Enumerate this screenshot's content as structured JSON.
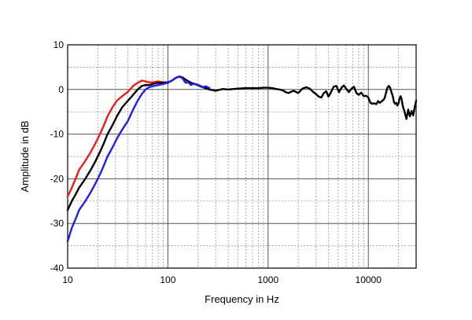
{
  "chart_data": {
    "type": "line",
    "title": "",
    "xlabel": "Frequency in Hz",
    "ylabel": "Amplitude in dB",
    "x_scale": "log",
    "xlim": [
      10,
      30000
    ],
    "ylim": [
      -40,
      10
    ],
    "x_ticks": [
      10,
      100,
      1000,
      10000
    ],
    "x_tick_labels": [
      "10",
      "100",
      "1000",
      "10000"
    ],
    "y_ticks": [
      10,
      0,
      -10,
      -20,
      -30,
      -40
    ],
    "y_tick_labels": [
      "10",
      "0",
      "-10",
      "-20",
      "-30",
      "-40"
    ],
    "grid": true,
    "legend": "none",
    "series": [
      {
        "color": "#ee1c1c",
        "points": [
          [
            10,
            -24
          ],
          [
            11,
            -22
          ],
          [
            12,
            -20
          ],
          [
            13,
            -18
          ],
          [
            15,
            -16
          ],
          [
            17,
            -14
          ],
          [
            19,
            -12
          ],
          [
            21,
            -10
          ],
          [
            23,
            -8
          ],
          [
            25,
            -6
          ],
          [
            28,
            -4
          ],
          [
            31,
            -2.5
          ],
          [
            35,
            -1.5
          ],
          [
            40,
            -0.5
          ],
          [
            45,
            0.8
          ],
          [
            50,
            1.5
          ],
          [
            55,
            2
          ],
          [
            60,
            1.8
          ],
          [
            65,
            1.6
          ],
          [
            70,
            1.6
          ],
          [
            75,
            1.7
          ],
          [
            80,
            1.8
          ],
          [
            90,
            1.6
          ],
          [
            100,
            1.6
          ],
          [
            110,
            2.0
          ],
          [
            120,
            2.6
          ],
          [
            130,
            2.9
          ],
          [
            140,
            2.7
          ],
          [
            150,
            2.2
          ],
          [
            170,
            1.5
          ],
          [
            200,
            1.0
          ],
          [
            230,
            0.4
          ],
          [
            260,
            0
          ]
        ]
      },
      {
        "color": "#000000",
        "points": [
          [
            10,
            -27
          ],
          [
            11,
            -25
          ],
          [
            12,
            -23.5
          ],
          [
            13,
            -22
          ],
          [
            15,
            -20
          ],
          [
            17,
            -18
          ],
          [
            19,
            -16
          ],
          [
            21,
            -14
          ],
          [
            23,
            -12
          ],
          [
            25,
            -10
          ],
          [
            28,
            -8
          ],
          [
            31,
            -6
          ],
          [
            35,
            -4
          ],
          [
            40,
            -2.5
          ],
          [
            45,
            -1.2
          ],
          [
            50,
            0
          ],
          [
            55,
            0.8
          ],
          [
            60,
            1.0
          ],
          [
            65,
            1.0
          ],
          [
            70,
            1.2
          ],
          [
            75,
            1.4
          ],
          [
            80,
            1.5
          ],
          [
            90,
            1.5
          ],
          [
            100,
            1.6
          ],
          [
            110,
            2.0
          ],
          [
            120,
            2.6
          ],
          [
            130,
            2.9
          ],
          [
            140,
            2.7
          ],
          [
            150,
            2.2
          ],
          [
            170,
            1.5
          ],
          [
            200,
            1.0
          ],
          [
            230,
            0.4
          ],
          [
            260,
            0
          ],
          [
            300,
            -0.3
          ],
          [
            350,
            0.1
          ],
          [
            400,
            0
          ],
          [
            500,
            0.2
          ],
          [
            600,
            0.3
          ],
          [
            700,
            0.3
          ],
          [
            800,
            0.3
          ],
          [
            900,
            0.4
          ],
          [
            1000,
            0.4
          ],
          [
            1100,
            0.3
          ],
          [
            1200,
            0.1
          ],
          [
            1300,
            0
          ],
          [
            1400,
            -0.2
          ],
          [
            1500,
            -0.6
          ],
          [
            1600,
            -0.8
          ],
          [
            1700,
            -0.5
          ],
          [
            1800,
            -0.3
          ],
          [
            2000,
            -0.8
          ],
          [
            2200,
            0.2
          ],
          [
            2400,
            0.5
          ],
          [
            2600,
            0.2
          ],
          [
            2800,
            -0.5
          ],
          [
            3000,
            -1.0
          ],
          [
            3200,
            -1.6
          ],
          [
            3400,
            -1.8
          ],
          [
            3600,
            -0.8
          ],
          [
            3800,
            -0.4
          ],
          [
            4000,
            -1.6
          ],
          [
            4200,
            -0.8
          ],
          [
            4500,
            0.6
          ],
          [
            4800,
            0.8
          ],
          [
            5100,
            -0.6
          ],
          [
            5400,
            0.4
          ],
          [
            5700,
            0.9
          ],
          [
            6000,
            0.2
          ],
          [
            6400,
            -0.6
          ],
          [
            6800,
            0.2
          ],
          [
            7200,
            0.6
          ],
          [
            7600,
            -0.8
          ],
          [
            8000,
            -1.2
          ],
          [
            8500,
            -0.7
          ],
          [
            9000,
            -1.5
          ],
          [
            9500,
            -1.4
          ],
          [
            10000,
            -1.8
          ],
          [
            10500,
            -3.0
          ],
          [
            11000,
            -3.2
          ],
          [
            11500,
            -3.1
          ],
          [
            12000,
            -3.3
          ],
          [
            12500,
            -2.6
          ],
          [
            13000,
            -3.0
          ],
          [
            13500,
            -2.7
          ],
          [
            14000,
            -2.4
          ],
          [
            14500,
            -2.0
          ],
          [
            15000,
            -0.8
          ],
          [
            15500,
            0.4
          ],
          [
            16000,
            0.8
          ],
          [
            16500,
            0.4
          ],
          [
            17000,
            -0.6
          ],
          [
            17500,
            -1.4
          ],
          [
            18000,
            -2.8
          ],
          [
            18500,
            -3.2
          ],
          [
            19000,
            -3.0
          ],
          [
            19500,
            -3.6
          ],
          [
            20000,
            -3.1
          ],
          [
            20500,
            -2.0
          ],
          [
            21000,
            -1.5
          ],
          [
            21500,
            -2.2
          ],
          [
            22000,
            -3.6
          ],
          [
            23000,
            -5.0
          ],
          [
            24000,
            -6.6
          ],
          [
            25000,
            -4.5
          ],
          [
            26000,
            -6.0
          ],
          [
            27000,
            -4.8
          ],
          [
            28000,
            -5.8
          ],
          [
            29000,
            -4.0
          ],
          [
            30000,
            -2.5
          ]
        ]
      },
      {
        "color": "#1f1fe8",
        "points": [
          [
            10,
            -34
          ],
          [
            11,
            -31
          ],
          [
            12,
            -29
          ],
          [
            13,
            -27
          ],
          [
            15,
            -25
          ],
          [
            17,
            -23
          ],
          [
            19,
            -21
          ],
          [
            21,
            -19
          ],
          [
            23,
            -17
          ],
          [
            25,
            -15
          ],
          [
            28,
            -13
          ],
          [
            31,
            -11
          ],
          [
            35,
            -9
          ],
          [
            40,
            -7
          ],
          [
            45,
            -4.5
          ],
          [
            50,
            -2.5
          ],
          [
            55,
            -1
          ],
          [
            60,
            0
          ],
          [
            65,
            0.5
          ],
          [
            70,
            0.7
          ],
          [
            80,
            1.0
          ],
          [
            90,
            1.2
          ],
          [
            100,
            1.5
          ],
          [
            110,
            2.0
          ],
          [
            120,
            2.6
          ],
          [
            130,
            2.9
          ],
          [
            140,
            2.5
          ],
          [
            150,
            1.5
          ],
          [
            160,
            1.6
          ],
          [
            170,
            1.0
          ],
          [
            180,
            1.3
          ],
          [
            200,
            0.9
          ],
          [
            220,
            0.5
          ],
          [
            240,
            0.7
          ],
          [
            260,
            0.3
          ]
        ]
      }
    ]
  }
}
